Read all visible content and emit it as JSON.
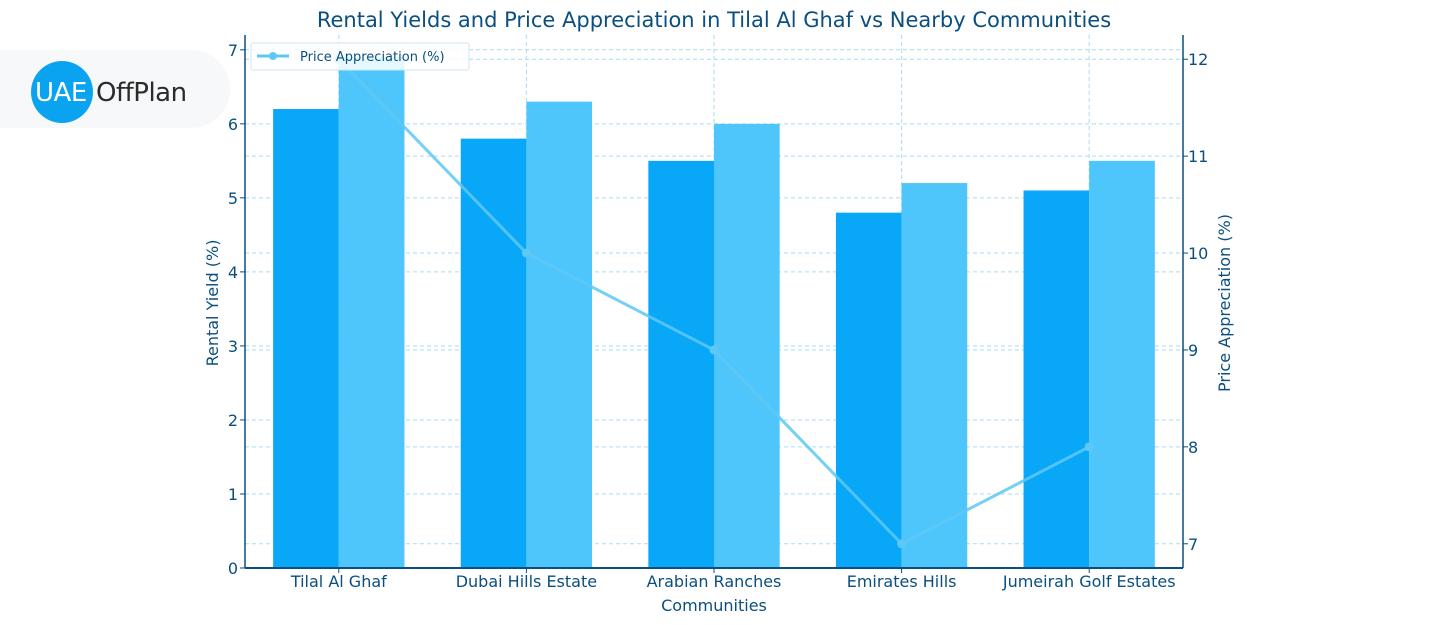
{
  "logo": {
    "part1": "UAE",
    "part2": "OffPlan"
  },
  "chart_data": {
    "type": "bar",
    "title": "Rental Yields and Price Appreciation in Tilal Al Ghaf vs Nearby Communities",
    "xlabel": "Communities",
    "ylabel": "Rental Yield (%)",
    "y2label": "Price Appreciation (%)",
    "categories": [
      "Tilal Al Ghaf",
      "Dubai Hills Estate",
      "Arabian Ranches",
      "Emirates Hills",
      "Jumeirah Golf Estates"
    ],
    "series": [
      {
        "type": "bar",
        "axis": "left",
        "color": "#08a7f7",
        "values": [
          6.2,
          5.8,
          5.5,
          4.8,
          5.1
        ]
      },
      {
        "type": "bar",
        "axis": "left",
        "color": "#4fc6fb",
        "values": [
          6.9,
          6.3,
          6.0,
          5.2,
          5.5
        ]
      },
      {
        "type": "line",
        "axis": "right",
        "name": "Price Appreciation (%)",
        "color": "#5ec8f5",
        "values": [
          12,
          10,
          9,
          7,
          8
        ]
      }
    ],
    "ylim": [
      0,
      7.2
    ],
    "yticks": [
      "0",
      "1",
      "2",
      "3",
      "4",
      "5",
      "6",
      "7"
    ],
    "y2lim": [
      6.75,
      12.25
    ],
    "y2ticks": [
      "7",
      "8",
      "9",
      "10",
      "11",
      "12"
    ],
    "grid": true,
    "legend": "top-left"
  }
}
